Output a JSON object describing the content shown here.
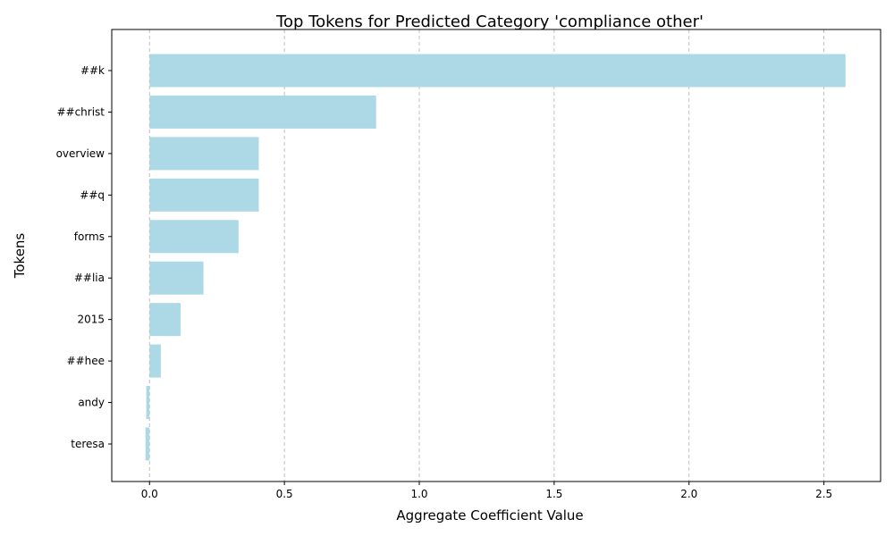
{
  "chart_data": {
    "type": "bar",
    "orientation": "horizontal",
    "title": "Top Tokens for Predicted Category 'compliance other'",
    "xlabel": "Aggregate Coefficient Value",
    "ylabel": "Tokens",
    "categories": [
      "##k",
      "##christ",
      "overview",
      "##q",
      "forms",
      "##lia",
      "2015",
      "##hee",
      "andy",
      "teresa"
    ],
    "values": [
      2.58,
      0.84,
      0.405,
      0.405,
      0.33,
      0.2,
      0.115,
      0.042,
      -0.012,
      -0.015
    ],
    "xlim": [
      -0.14,
      2.71
    ],
    "xticks": [
      0.0,
      0.5,
      1.0,
      1.5,
      2.0,
      2.5
    ],
    "xtick_labels": [
      "0.0",
      "0.5",
      "1.0",
      "1.5",
      "2.0",
      "2.5"
    ],
    "grid": "x-axis dashed",
    "bar_color": "#add8e6"
  }
}
